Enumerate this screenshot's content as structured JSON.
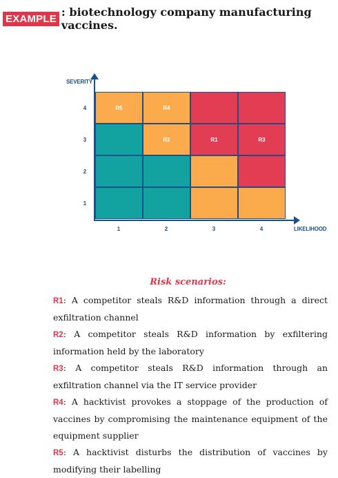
{
  "header": {
    "tag": "EXAMPLE",
    "title": ": biotechnology company manufacturing vaccines."
  },
  "matrix": {
    "y_axis_label": "SEVERITY",
    "x_axis_label": "LIKELIHOOD",
    "y_ticks": [
      "4",
      "3",
      "2",
      "1"
    ],
    "x_ticks": [
      "1",
      "2",
      "3",
      "4"
    ],
    "colors": {
      "green": "#12a3a0",
      "orange": "#fbab4c",
      "red": "#e23d52"
    },
    "rows": [
      [
        {
          "color": "orange",
          "label": "R5"
        },
        {
          "color": "orange",
          "label": "R4"
        },
        {
          "color": "red",
          "label": ""
        },
        {
          "color": "red",
          "label": ""
        }
      ],
      [
        {
          "color": "green",
          "label": ""
        },
        {
          "color": "orange",
          "label": "R2"
        },
        {
          "color": "red",
          "label": "R1"
        },
        {
          "color": "red",
          "label": "R3"
        }
      ],
      [
        {
          "color": "green",
          "label": ""
        },
        {
          "color": "green",
          "label": ""
        },
        {
          "color": "orange",
          "label": ""
        },
        {
          "color": "red",
          "label": ""
        }
      ],
      [
        {
          "color": "green",
          "label": ""
        },
        {
          "color": "green",
          "label": ""
        },
        {
          "color": "orange",
          "label": ""
        },
        {
          "color": "orange",
          "label": ""
        }
      ]
    ]
  },
  "scenarios": {
    "title": "Risk scenarios:",
    "items": [
      {
        "id": "R1",
        "text": ": A competitor steals R&D information through a direct exfiltration channel"
      },
      {
        "id": "R2",
        "text": ": A competitor steals R&D information by exfiltering information held by the laboratory"
      },
      {
        "id": "R3",
        "text": ": A competitor steals R&D information through an exfiltration channel via the IT service provider"
      },
      {
        "id": "R4",
        "text": ": A hacktivist provokes a stoppage of the production of vaccines by compromising the maintenance equipment of the equipment supplier"
      },
      {
        "id": "R5",
        "text": ": A hacktivist disturbs the distribution of vaccines by modifying their labelling"
      }
    ]
  }
}
